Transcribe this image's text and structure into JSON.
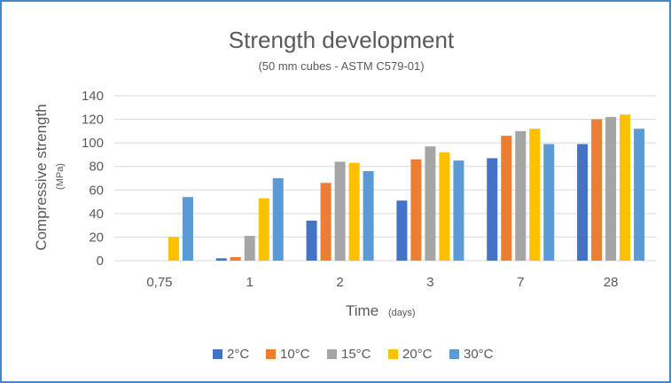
{
  "chart_data": {
    "type": "bar",
    "title": "Strength development",
    "subtitle": "(50 mm cubes - ASTM C579-01)",
    "xlabel": "Time",
    "xlabel_unit": "(days)",
    "ylabel": "Compressive strength",
    "ylabel_unit": "(MPa)",
    "ylim": [
      0,
      140
    ],
    "yticks": [
      0,
      20,
      40,
      60,
      80,
      100,
      120,
      140
    ],
    "categories": [
      "0,75",
      "1",
      "2",
      "3",
      "7",
      "28"
    ],
    "grid": true,
    "legend_position": "bottom",
    "series": [
      {
        "name": "2°C",
        "color": "#4472c4",
        "values": [
          0,
          2,
          34,
          51,
          87,
          99
        ]
      },
      {
        "name": "10°C",
        "color": "#ed7d31",
        "values": [
          0,
          3,
          66,
          86,
          106,
          120
        ]
      },
      {
        "name": "15°C",
        "color": "#a5a5a5",
        "values": [
          0,
          21,
          84,
          97,
          110,
          122
        ]
      },
      {
        "name": "20°C",
        "color": "#ffc000",
        "values": [
          20,
          53,
          83,
          92,
          112,
          124
        ]
      },
      {
        "name": "30°C",
        "color": "#5b9bd5",
        "values": [
          54,
          70,
          76,
          85,
          99,
          112
        ]
      }
    ]
  }
}
